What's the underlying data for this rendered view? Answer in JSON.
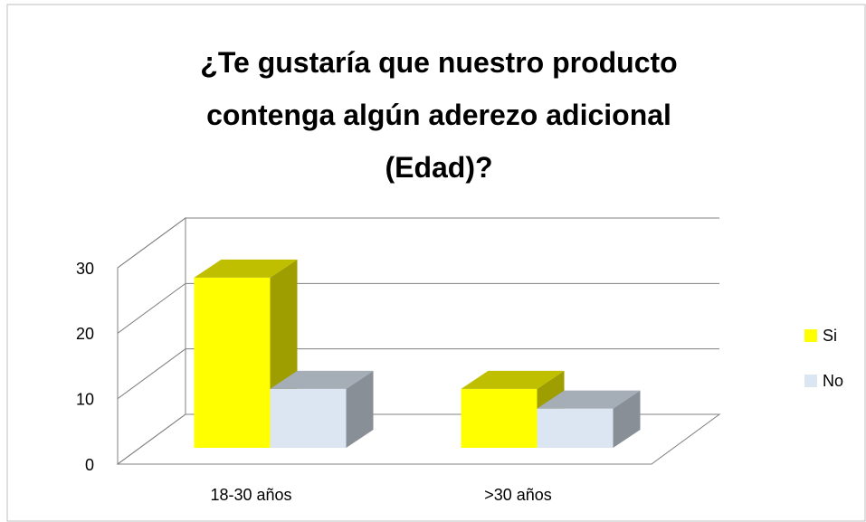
{
  "chart_data": {
    "type": "bar3d",
    "title": "¿Te gustaría que nuestro producto contenga algún aderezo adicional (Edad)?",
    "categories": [
      "18-30 años",
      ">30 años"
    ],
    "series": [
      {
        "name": "Si",
        "color": "#ffff00",
        "values": [
          26,
          9
        ]
      },
      {
        "name": "No",
        "color": "#dce6f2",
        "values": [
          9,
          6
        ]
      }
    ],
    "ylim": [
      0,
      30
    ],
    "yticks": [
      0,
      10,
      20,
      30
    ],
    "grid": true,
    "legend": "right"
  }
}
